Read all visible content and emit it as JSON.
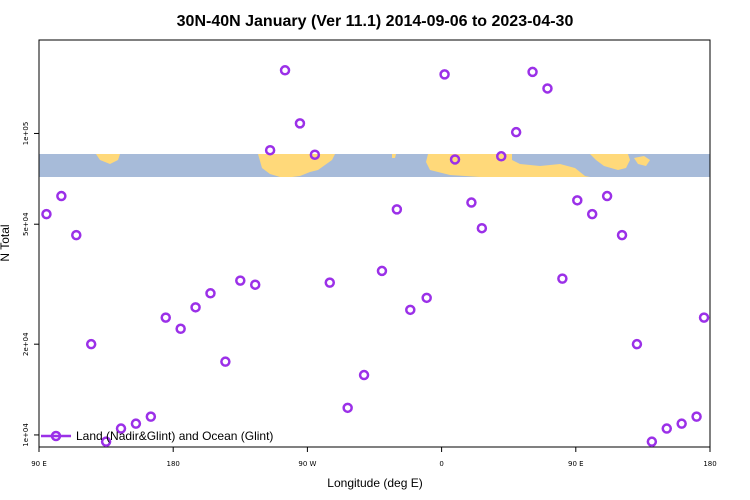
{
  "chart_data": {
    "type": "scatter",
    "title": "30N-40N January (Ver 11.1)   2014-09-06 to 2023-04-30",
    "xlabel": "Longitude (deg E)",
    "ylabel": "N Total",
    "x_ticks": [
      {
        "value": 90,
        "label": "90 E"
      },
      {
        "value": 180,
        "label": "180"
      },
      {
        "value": 270,
        "label": "90 W"
      },
      {
        "value": 360,
        "label": "0"
      },
      {
        "value": 450,
        "label": "90 E"
      },
      {
        "value": 540,
        "label": "180"
      }
    ],
    "y_ticks": [
      {
        "value": 10000,
        "label": "1e+04"
      },
      {
        "value": 20000,
        "label": "2e+04"
      },
      {
        "value": 50000,
        "label": "5e+04"
      },
      {
        "value": 100000,
        "label": "1e+05"
      }
    ],
    "xlim": [
      90,
      540
    ],
    "ylim_log10": [
      3.96,
      5.31
    ],
    "y_scale": "log",
    "grid": false,
    "legend_position": "bottom-left",
    "series": [
      {
        "name": "Land (Nadir&Glint) and Ocean (Glint)",
        "color": "#9B30E8",
        "marker": "open-circle",
        "points": [
          {
            "x": 95,
            "y": 54000
          },
          {
            "x": 105,
            "y": 62000
          },
          {
            "x": 115,
            "y": 46000
          },
          {
            "x": 125,
            "y": 20000
          },
          {
            "x": 135,
            "y": 9500
          },
          {
            "x": 145,
            "y": 10500
          },
          {
            "x": 155,
            "y": 10900
          },
          {
            "x": 165,
            "y": 11500
          },
          {
            "x": 175,
            "y": 24500
          },
          {
            "x": 185,
            "y": 22500
          },
          {
            "x": 195,
            "y": 26500
          },
          {
            "x": 205,
            "y": 29500
          },
          {
            "x": 215,
            "y": 17500
          },
          {
            "x": 225,
            "y": 32500
          },
          {
            "x": 235,
            "y": 31500
          },
          {
            "x": 245,
            "y": 88000
          },
          {
            "x": 255,
            "y": 162000
          },
          {
            "x": 265,
            "y": 108000
          },
          {
            "x": 275,
            "y": 85000
          },
          {
            "x": 285,
            "y": 32000
          },
          {
            "x": 297,
            "y": 12300
          },
          {
            "x": 308,
            "y": 15800
          },
          {
            "x": 320,
            "y": 35000
          },
          {
            "x": 330,
            "y": 56000
          },
          {
            "x": 339,
            "y": 26000
          },
          {
            "x": 350,
            "y": 28500
          },
          {
            "x": 362,
            "y": 157000
          },
          {
            "x": 369,
            "y": 82000
          },
          {
            "x": 380,
            "y": 59000
          },
          {
            "x": 387,
            "y": 48500
          },
          {
            "x": 400,
            "y": 84000
          },
          {
            "x": 410,
            "y": 101000
          },
          {
            "x": 421,
            "y": 160000
          },
          {
            "x": 431,
            "y": 141000
          },
          {
            "x": 441,
            "y": 33000
          },
          {
            "x": 451,
            "y": 60000
          },
          {
            "x": 461,
            "y": 54000
          },
          {
            "x": 471,
            "y": 62000
          },
          {
            "x": 481,
            "y": 46000
          },
          {
            "x": 491,
            "y": 20000
          },
          {
            "x": 501,
            "y": 9500
          },
          {
            "x": 511,
            "y": 10500
          },
          {
            "x": 521,
            "y": 10900
          },
          {
            "x": 531,
            "y": 11500
          },
          {
            "x": 536,
            "y": 24500
          }
        ]
      }
    ]
  }
}
